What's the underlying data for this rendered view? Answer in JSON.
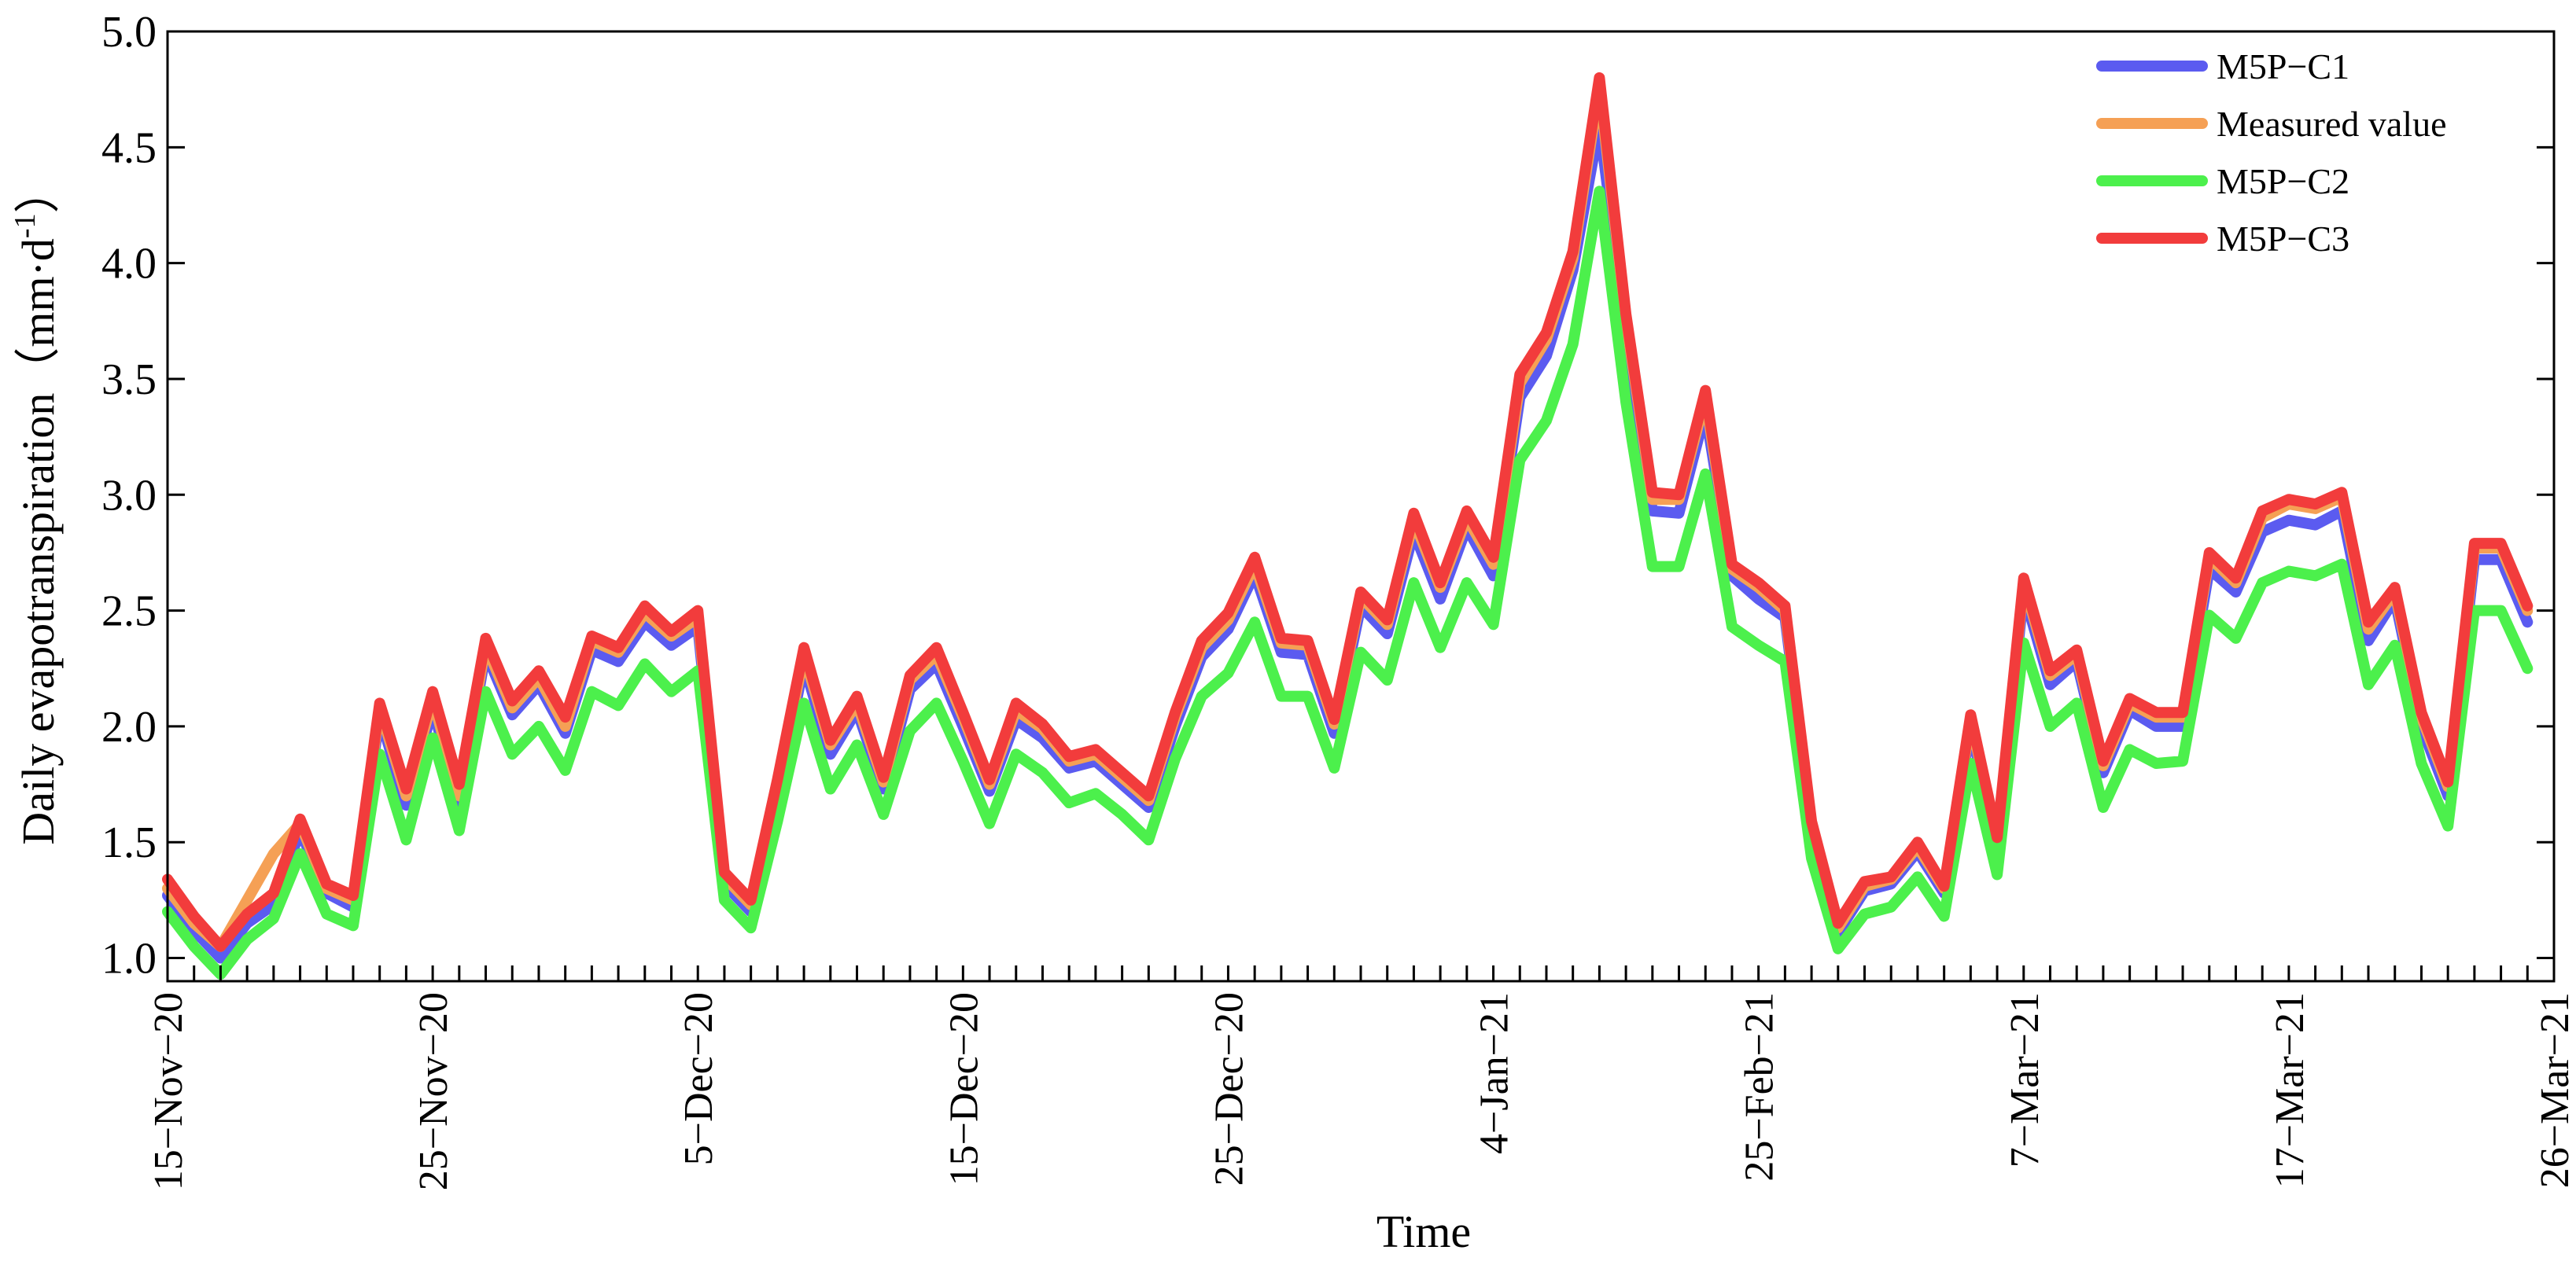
{
  "chart_data": {
    "type": "line",
    "xlabel": "Time",
    "ylabel": "Daily evapotranspiration",
    "ylabel_unit": "（mm·d",
    "ylabel_unit_sup": "-1",
    "ylabel_unit_close": "）",
    "ylim": [
      0.9,
      5.0
    ],
    "yticks": [
      "1.0",
      "1.5",
      "2.0",
      "2.5",
      "3.0",
      "3.5",
      "4.0",
      "4.5",
      "5.0"
    ],
    "ytick_values": [
      1.0,
      1.5,
      2.0,
      2.5,
      3.0,
      3.5,
      4.0,
      4.5,
      5.0
    ],
    "xticks": [
      {
        "label": "15−Nov−20",
        "index": 0
      },
      {
        "label": "25−Nov−20",
        "index": 10
      },
      {
        "label": "5−Dec−20",
        "index": 20
      },
      {
        "label": "15−Dec−20",
        "index": 30
      },
      {
        "label": "25−Dec−20",
        "index": 40
      },
      {
        "label": "4−Jan−21",
        "index": 50
      },
      {
        "label": "25−Feb−21",
        "index": 60
      },
      {
        "label": "7−Mar−21",
        "index": 70
      },
      {
        "label": "17−Mar−21",
        "index": 80
      },
      {
        "label": "26−Mar−21",
        "index": 90
      }
    ],
    "grid": false,
    "legend_position": "top-right",
    "x_count": 91,
    "series": [
      {
        "name": "M5P−C1",
        "color": "#5b5bf0",
        "values": [
          1.27,
          1.12,
          1.0,
          1.15,
          1.23,
          1.55,
          1.28,
          1.22,
          2.05,
          1.66,
          2.08,
          1.66,
          2.32,
          2.05,
          2.18,
          1.97,
          2.33,
          2.28,
          2.45,
          2.35,
          2.43,
          1.32,
          1.2,
          1.7,
          2.27,
          1.88,
          2.07,
          1.73,
          2.16,
          2.27,
          2.0,
          1.72,
          2.03,
          1.95,
          1.82,
          1.85,
          1.75,
          1.65,
          2.0,
          2.3,
          2.42,
          2.66,
          2.32,
          2.31,
          1.97,
          2.52,
          2.4,
          2.84,
          2.55,
          2.86,
          2.65,
          3.42,
          3.6,
          3.97,
          4.6,
          3.7,
          2.93,
          2.92,
          3.36,
          2.65,
          2.55,
          2.47,
          1.55,
          1.11,
          1.29,
          1.32,
          1.46,
          1.28,
          2.0,
          1.48,
          2.58,
          2.18,
          2.28,
          1.8,
          2.07,
          2.0,
          2.0,
          2.68,
          2.58,
          2.84,
          2.89,
          2.87,
          2.93,
          2.37,
          2.55,
          2.0,
          1.7,
          2.72,
          2.72,
          2.45
        ]
      },
      {
        "name": "Measured value",
        "color": "#f5a055",
        "values": [
          1.3,
          1.15,
          1.05,
          1.25,
          1.45,
          1.58,
          1.3,
          1.25,
          2.08,
          1.7,
          2.12,
          1.7,
          2.35,
          2.08,
          2.21,
          2.0,
          2.37,
          2.32,
          2.49,
          2.39,
          2.47,
          1.35,
          1.23,
          1.74,
          2.31,
          1.92,
          2.1,
          1.76,
          2.2,
          2.31,
          2.04,
          1.75,
          2.07,
          1.99,
          1.85,
          1.88,
          1.78,
          1.68,
          2.04,
          2.34,
          2.46,
          2.7,
          2.36,
          2.35,
          2.01,
          2.56,
          2.44,
          2.89,
          2.6,
          2.9,
          2.7,
          3.48,
          3.67,
          4.02,
          4.76,
          3.76,
          2.98,
          2.98,
          3.42,
          2.68,
          2.6,
          2.5,
          1.58,
          1.13,
          1.31,
          1.34,
          1.48,
          1.3,
          2.03,
          1.51,
          2.62,
          2.22,
          2.31,
          1.83,
          2.1,
          2.04,
          2.04,
          2.73,
          2.62,
          2.9,
          2.96,
          2.94,
          2.99,
          2.42,
          2.58,
          2.04,
          1.74,
          2.77,
          2.77,
          2.5
        ]
      },
      {
        "name": "M5P−C2",
        "color": "#4cf04c",
        "values": [
          1.2,
          1.05,
          0.93,
          1.08,
          1.17,
          1.45,
          1.19,
          1.14,
          1.88,
          1.51,
          1.95,
          1.55,
          2.15,
          1.88,
          2.0,
          1.81,
          2.15,
          2.09,
          2.27,
          2.15,
          2.24,
          1.25,
          1.13,
          1.59,
          2.1,
          1.73,
          1.92,
          1.62,
          1.98,
          2.1,
          1.85,
          1.58,
          1.88,
          1.8,
          1.67,
          1.71,
          1.62,
          1.51,
          1.86,
          2.13,
          2.23,
          2.45,
          2.13,
          2.13,
          1.82,
          2.32,
          2.2,
          2.62,
          2.34,
          2.62,
          2.44,
          3.15,
          3.32,
          3.65,
          4.31,
          3.4,
          2.69,
          2.69,
          3.09,
          2.43,
          2.35,
          2.28,
          1.43,
          1.04,
          1.19,
          1.22,
          1.35,
          1.18,
          1.84,
          1.36,
          2.36,
          2.0,
          2.1,
          1.65,
          1.9,
          1.84,
          1.85,
          2.48,
          2.38,
          2.62,
          2.67,
          2.65,
          2.7,
          2.18,
          2.35,
          1.84,
          1.57,
          2.5,
          2.5,
          2.25
        ]
      },
      {
        "name": "M5P−C3",
        "color": "#f23c3c",
        "values": [
          1.34,
          1.18,
          1.05,
          1.19,
          1.28,
          1.6,
          1.32,
          1.27,
          2.1,
          1.73,
          2.15,
          1.75,
          2.38,
          2.11,
          2.24,
          2.04,
          2.39,
          2.34,
          2.52,
          2.41,
          2.5,
          1.37,
          1.25,
          1.77,
          2.34,
          1.94,
          2.13,
          1.78,
          2.22,
          2.34,
          2.06,
          1.77,
          2.1,
          2.01,
          1.87,
          1.9,
          1.8,
          1.7,
          2.06,
          2.37,
          2.49,
          2.73,
          2.38,
          2.37,
          2.03,
          2.58,
          2.46,
          2.92,
          2.62,
          2.93,
          2.73,
          3.52,
          3.7,
          4.05,
          4.8,
          3.78,
          3.01,
          3.0,
          3.45,
          2.7,
          2.62,
          2.52,
          1.59,
          1.15,
          1.33,
          1.35,
          1.5,
          1.31,
          2.05,
          1.52,
          2.64,
          2.24,
          2.33,
          1.85,
          2.12,
          2.06,
          2.06,
          2.75,
          2.64,
          2.93,
          2.98,
          2.96,
          3.01,
          2.45,
          2.6,
          2.06,
          1.76,
          2.79,
          2.79,
          2.52
        ]
      }
    ]
  }
}
